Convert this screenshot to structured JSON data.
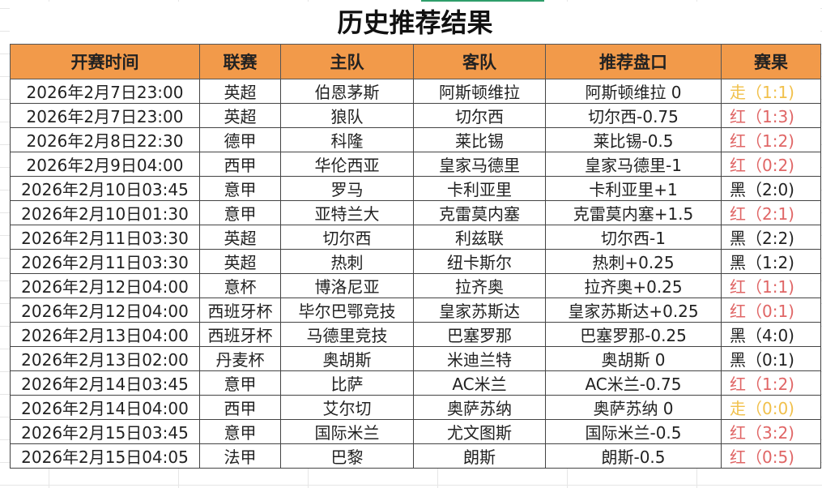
{
  "title": "历史推荐结果",
  "colors": {
    "header_bg": "#f29a4a",
    "win": "#e06666",
    "draw": "#f1c04b",
    "loss": "#222222"
  },
  "columns": [
    "开赛时间",
    "联赛",
    "主队",
    "客队",
    "推荐盘口",
    "赛果"
  ],
  "rows": [
    {
      "time": "2026年2月7日23:00",
      "league": "英超",
      "home": "伯恩茅斯",
      "away": "阿斯顿维拉",
      "pick": "阿斯顿维拉 0",
      "result": "走（1:1)",
      "status": "draw"
    },
    {
      "time": "2026年2月7日23:00",
      "league": "英超",
      "home": "狼队",
      "away": "切尔西",
      "pick": "切尔西-0.75",
      "result": "红（1:3)",
      "status": "red"
    },
    {
      "time": "2026年2月8日22:30",
      "league": "德甲",
      "home": "科隆",
      "away": "莱比锡",
      "pick": "莱比锡-0.5",
      "result": "红（1:2)",
      "status": "red"
    },
    {
      "time": "2026年2月9日04:00",
      "league": "西甲",
      "home": "华伦西亚",
      "away": "皇家马德里",
      "pick": "皇家马德里-1",
      "result": "红（0:2)",
      "status": "red"
    },
    {
      "time": "2026年2月10日03:45",
      "league": "意甲",
      "home": "罗马",
      "away": "卡利亚里",
      "pick": "卡利亚里+1",
      "result": "黑（2:0)",
      "status": "black"
    },
    {
      "time": "2026年2月10日01:30",
      "league": "意甲",
      "home": "亚特兰大",
      "away": "克雷莫内塞",
      "pick": "克雷莫内塞+1.5",
      "result": "红（2:1)",
      "status": "red"
    },
    {
      "time": "2026年2月11日03:30",
      "league": "英超",
      "home": "切尔西",
      "away": "利兹联",
      "pick": "切尔西-1",
      "result": "黑（2:2)",
      "status": "black"
    },
    {
      "time": "2026年2月11日03:30",
      "league": "英超",
      "home": "热刺",
      "away": "纽卡斯尔",
      "pick": "热刺+0.25",
      "result": "黑（1:2)",
      "status": "black"
    },
    {
      "time": "2026年2月12日04:00",
      "league": "意杯",
      "home": "博洛尼亚",
      "away": "拉齐奥",
      "pick": "拉齐奥+0.25",
      "result": "红（1:1)",
      "status": "red"
    },
    {
      "time": "2026年2月12日04:00",
      "league": "西班牙杯",
      "home": "毕尔巴鄂竞技",
      "away": "皇家苏斯达",
      "pick": "皇家苏斯达+0.25",
      "result": "红（0:1)",
      "status": "red"
    },
    {
      "time": "2026年2月13日04:00",
      "league": "西班牙杯",
      "home": "马德里竞技",
      "away": "巴塞罗那",
      "pick": "巴塞罗那-0.25",
      "result": "黑（4:0)",
      "status": "black"
    },
    {
      "time": "2026年2月13日02:00",
      "league": "丹麦杯",
      "home": "奥胡斯",
      "away": "米迪兰特",
      "pick": "奥胡斯 0",
      "result": "黑（0:1)",
      "status": "black"
    },
    {
      "time": "2026年2月14日03:45",
      "league": "意甲",
      "home": "比萨",
      "away": "AC米兰",
      "pick": "AC米兰-0.75",
      "result": "红（1:2)",
      "status": "red"
    },
    {
      "time": "2026年2月14日04:00",
      "league": "西甲",
      "home": "艾尔切",
      "away": "奥萨苏纳",
      "pick": "奥萨苏纳 0",
      "result": "走（0:0)",
      "status": "draw"
    },
    {
      "time": "2026年2月15日03:45",
      "league": "意甲",
      "home": "国际米兰",
      "away": "尤文图斯",
      "pick": "国际米兰-0.5",
      "result": "红（3:2)",
      "status": "red"
    },
    {
      "time": "2026年2月15日04:05",
      "league": "法甲",
      "home": "巴黎",
      "away": "朗斯",
      "pick": "朗斯-0.5",
      "result": "红（0:5)",
      "status": "red"
    }
  ]
}
